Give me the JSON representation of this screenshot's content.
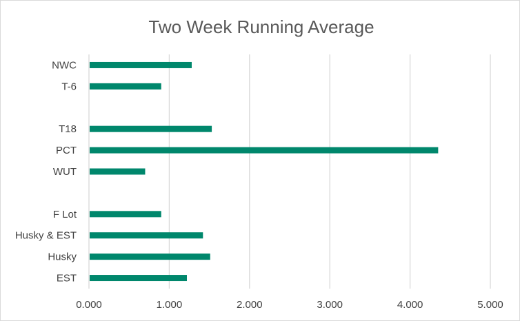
{
  "chart_data": {
    "type": "bar",
    "orientation": "horizontal",
    "title": "Two Week Running Average",
    "xlabel": "",
    "ylabel": "",
    "categories": [
      "NWC",
      "T-6",
      "",
      "T18",
      "PCT",
      "WUT",
      "",
      "F Lot",
      "Husky & EST",
      "Husky",
      "EST"
    ],
    "values": [
      1.28,
      0.9,
      null,
      1.53,
      4.35,
      0.7,
      null,
      0.9,
      1.42,
      1.51,
      1.22
    ],
    "xlim": [
      0,
      5
    ],
    "xticks": [
      "0.000",
      "1.000",
      "2.000",
      "3.000",
      "4.000",
      "5.000"
    ],
    "grid": "vertical",
    "legend": "none",
    "bar_color": "#00876C",
    "grid_color": "#d9d9d9"
  }
}
